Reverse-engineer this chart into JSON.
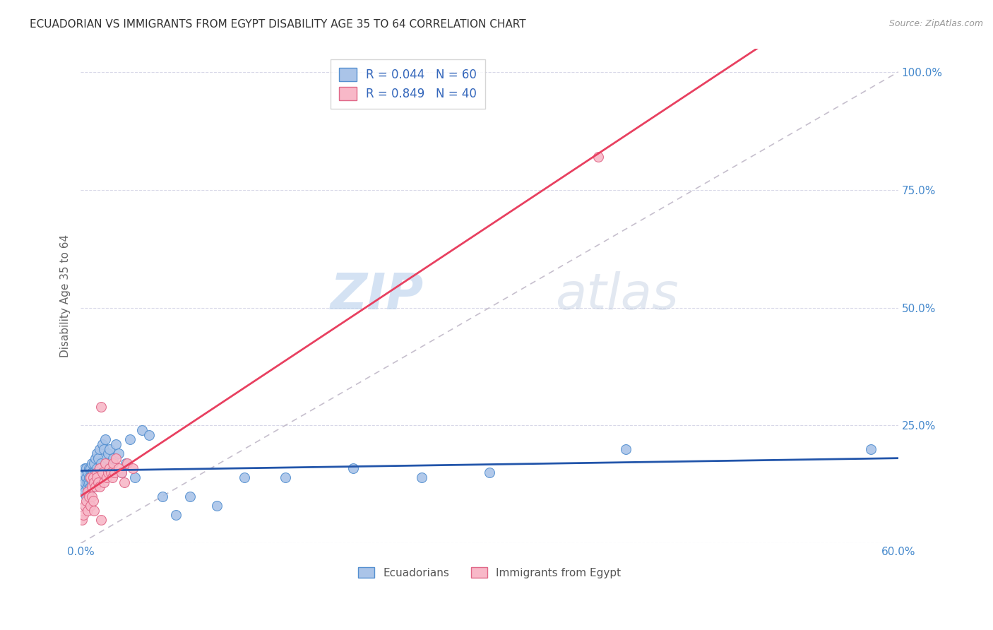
{
  "title": "ECUADORIAN VS IMMIGRANTS FROM EGYPT DISABILITY AGE 35 TO 64 CORRELATION CHART",
  "source": "Source: ZipAtlas.com",
  "ylabel": "Disability Age 35 to 64",
  "x_min": 0.0,
  "x_max": 0.6,
  "y_min": 0.0,
  "y_max": 1.05,
  "legend_labels": [
    "Ecuadorians",
    "Immigrants from Egypt"
  ],
  "blue_scatter_color": "#aac4e8",
  "blue_edge_color": "#5590d0",
  "pink_scatter_color": "#f8b8c8",
  "pink_edge_color": "#e06888",
  "blue_line_color": "#2255aa",
  "pink_line_color": "#e84060",
  "diag_line_color": "#c0b8c8",
  "r_blue": 0.044,
  "n_blue": 60,
  "r_pink": 0.849,
  "n_pink": 40,
  "ecuadorian_x": [
    0.001,
    0.002,
    0.002,
    0.003,
    0.003,
    0.003,
    0.004,
    0.004,
    0.004,
    0.005,
    0.005,
    0.005,
    0.006,
    0.006,
    0.006,
    0.006,
    0.007,
    0.007,
    0.007,
    0.008,
    0.008,
    0.008,
    0.009,
    0.009,
    0.01,
    0.01,
    0.011,
    0.011,
    0.012,
    0.012,
    0.013,
    0.014,
    0.015,
    0.016,
    0.017,
    0.018,
    0.019,
    0.02,
    0.021,
    0.022,
    0.024,
    0.026,
    0.028,
    0.03,
    0.033,
    0.036,
    0.04,
    0.045,
    0.05,
    0.06,
    0.07,
    0.08,
    0.1,
    0.12,
    0.15,
    0.2,
    0.25,
    0.3,
    0.4,
    0.58
  ],
  "ecuadorian_y": [
    0.13,
    0.12,
    0.15,
    0.11,
    0.13,
    0.16,
    0.1,
    0.14,
    0.16,
    0.12,
    0.13,
    0.15,
    0.11,
    0.13,
    0.14,
    0.16,
    0.12,
    0.14,
    0.16,
    0.13,
    0.15,
    0.17,
    0.12,
    0.15,
    0.14,
    0.17,
    0.15,
    0.18,
    0.16,
    0.19,
    0.18,
    0.2,
    0.17,
    0.21,
    0.2,
    0.22,
    0.18,
    0.19,
    0.2,
    0.16,
    0.18,
    0.21,
    0.19,
    0.15,
    0.17,
    0.22,
    0.14,
    0.24,
    0.23,
    0.1,
    0.06,
    0.1,
    0.08,
    0.14,
    0.14,
    0.16,
    0.14,
    0.15,
    0.2,
    0.2
  ],
  "egypt_x": [
    0.001,
    0.002,
    0.003,
    0.004,
    0.005,
    0.005,
    0.006,
    0.007,
    0.007,
    0.008,
    0.008,
    0.009,
    0.009,
    0.01,
    0.01,
    0.011,
    0.012,
    0.012,
    0.013,
    0.014,
    0.014,
    0.015,
    0.016,
    0.017,
    0.018,
    0.019,
    0.02,
    0.021,
    0.022,
    0.023,
    0.024,
    0.025,
    0.026,
    0.028,
    0.03,
    0.032,
    0.034,
    0.038,
    0.38,
    0.015
  ],
  "egypt_y": [
    0.05,
    0.06,
    0.08,
    0.09,
    0.07,
    0.11,
    0.1,
    0.08,
    0.14,
    0.1,
    0.12,
    0.09,
    0.14,
    0.07,
    0.13,
    0.12,
    0.15,
    0.14,
    0.13,
    0.12,
    0.16,
    0.29,
    0.15,
    0.13,
    0.17,
    0.14,
    0.15,
    0.16,
    0.15,
    0.14,
    0.17,
    0.15,
    0.18,
    0.16,
    0.15,
    0.13,
    0.17,
    0.16,
    0.82,
    0.05
  ],
  "watermark_zip": "ZIP",
  "watermark_atlas": "atlas",
  "background_color": "#ffffff",
  "grid_color": "#d8d8e8"
}
